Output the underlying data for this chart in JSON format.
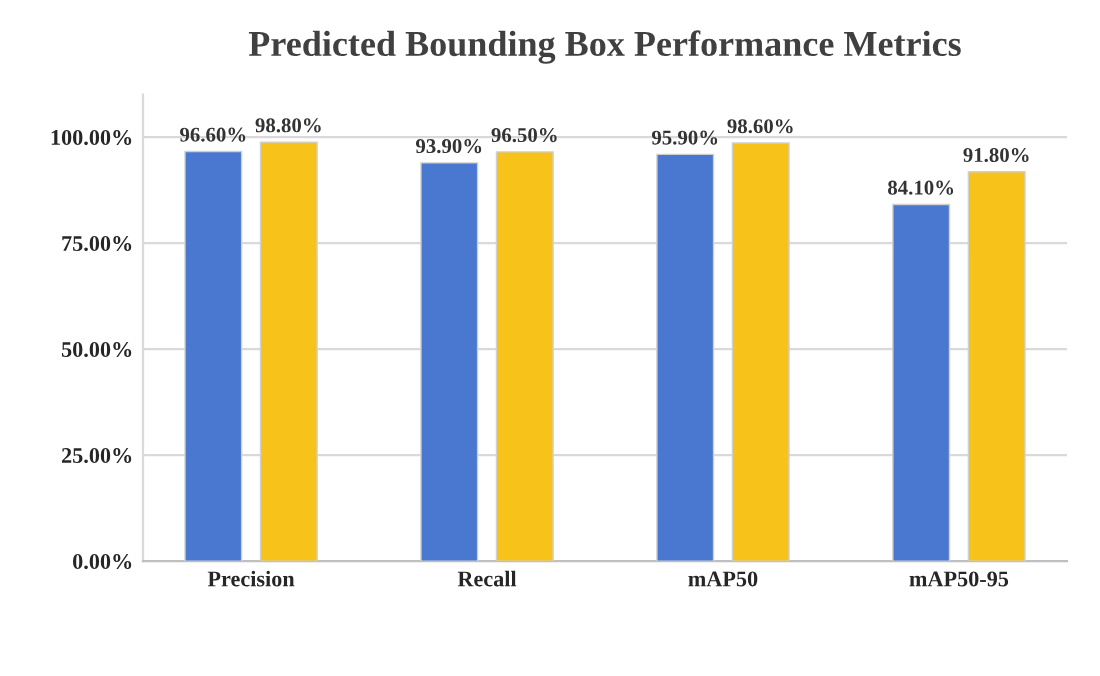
{
  "chart_data": {
    "type": "bar",
    "title": "Predicted Bounding Box Performance Metrics",
    "categories": [
      "Precision",
      "Recall",
      "mAP50",
      "mAP50-95"
    ],
    "series": [
      {
        "color": "#4a78d0",
        "values": [
          96.6,
          93.9,
          95.9,
          84.1
        ],
        "value_labels": [
          "96.60%",
          "93.90%",
          "95.90%",
          "84.10%"
        ]
      },
      {
        "color": "#f7c21a",
        "values": [
          98.8,
          96.5,
          98.6,
          91.8
        ],
        "value_labels": [
          "98.80%",
          "96.50%",
          "98.60%",
          "91.80%"
        ]
      }
    ],
    "ylim": [
      0,
      110
    ],
    "yticks": [
      {
        "value": 0,
        "label": "0.00%"
      },
      {
        "value": 25,
        "label": "25.00%"
      },
      {
        "value": 50,
        "label": "50.00%"
      },
      {
        "value": 75,
        "label": "75.00%"
      },
      {
        "value": 100,
        "label": "100.00%"
      }
    ],
    "grid": "y"
  }
}
